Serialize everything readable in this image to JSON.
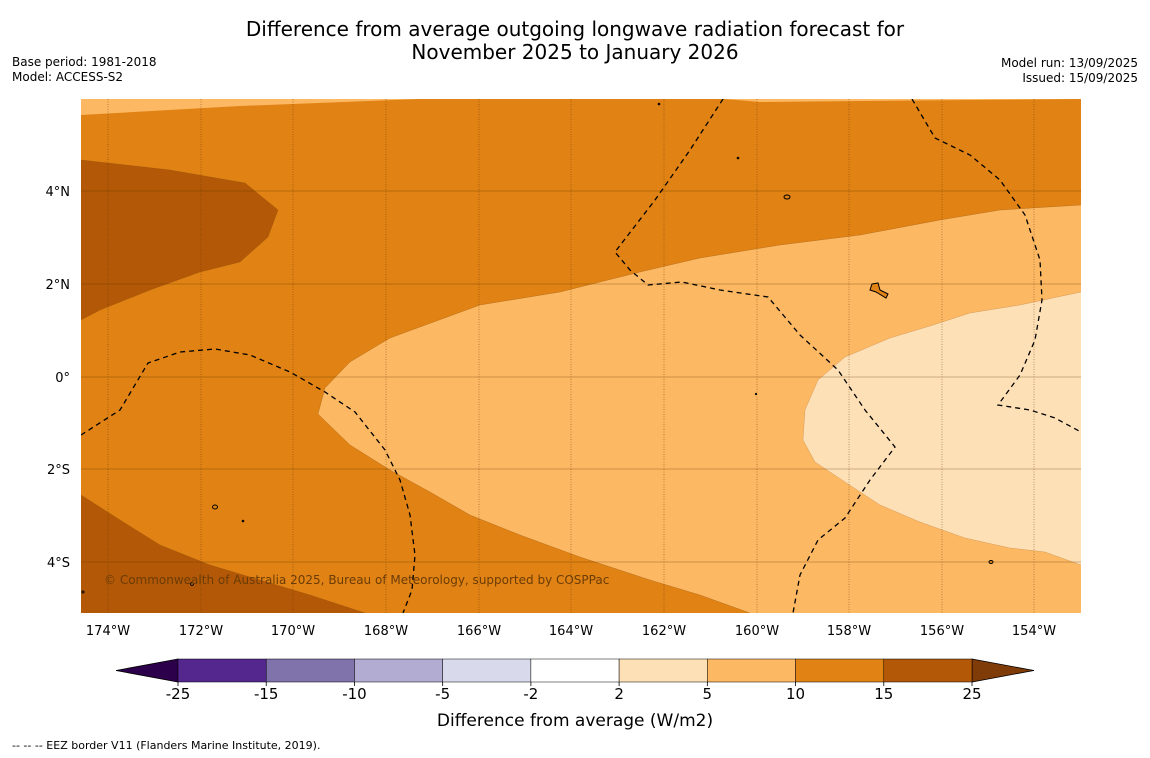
{
  "title_line1": "Difference from average outgoing longwave radiation forecast for",
  "title_line2": "November 2025 to January 2026",
  "base_period": "Base period: 1981-2018",
  "model": "Model: ACCESS-S2",
  "model_run": "Model run: 13/09/2025",
  "issued": "Issued: 15/09/2025",
  "copyright": "© Commonwealth of Australia 2025, Bureau of Meteorology, supported by COSPPac",
  "footnote": "--  --  -- EEZ border V11 (Flanders Marine Institute, 2019).",
  "map": {
    "lon_labels": [
      "174°W",
      "172°W",
      "170°W",
      "168°W",
      "166°W",
      "164°W",
      "162°W",
      "160°W",
      "158°W",
      "156°W",
      "154°W"
    ],
    "lat_labels": [
      "4°N",
      "2°N",
      "0°",
      "2°S",
      "4°S"
    ]
  },
  "colorbar": {
    "title": "Difference from average (W/m2)",
    "ticks": [
      "-25",
      "-15",
      "-10",
      "-5",
      "-2",
      "2",
      "5",
      "10",
      "15",
      "25"
    ],
    "colors": [
      "#54278f",
      "#8073ac",
      "#b2abd2",
      "#d8daeb",
      "#ffffff",
      "#fee0b6",
      "#fdb863",
      "#e08214",
      "#b35806"
    ],
    "extend_low_color": "#2d004b",
    "extend_high_color": "#7f3b08"
  }
}
